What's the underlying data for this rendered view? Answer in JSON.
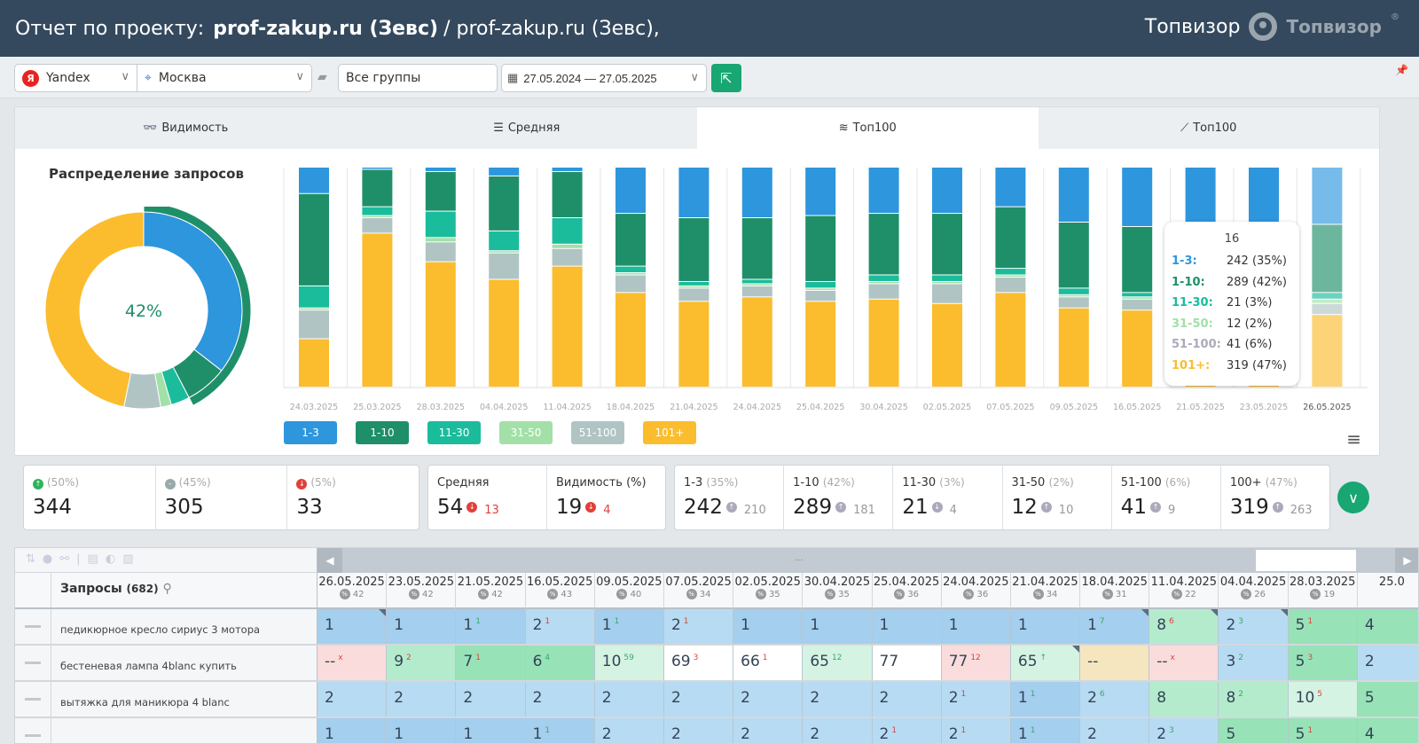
{
  "header": {
    "title_prefix": "Отчет по проекту:",
    "project_bold": "prof-zakup.ru (Зевс)",
    "project_rest": "/ prof-zakup.ru (Зевс),",
    "brand_text": "Топвизор",
    "logo_text": "Топвизор",
    "logo_mark": "®"
  },
  "toolbar": {
    "engine": "Yandex",
    "engine_icon": "Я",
    "region": "Москва",
    "groups": "Все группы",
    "date_range": "27.05.2024 — 27.05.2025"
  },
  "tabs": [
    {
      "label": "Видимость",
      "icon": "glasses-icon"
    },
    {
      "label": "Средняя",
      "icon": "lines-icon"
    },
    {
      "label": "Топ100",
      "icon": "layers-icon",
      "active": true
    },
    {
      "label": "Топ100",
      "icon": "chart-icon"
    }
  ],
  "distribution_title": "Распределение запросов",
  "colors": {
    "1-3": "#2d96dd",
    "1-10": "#1f8f6a",
    "11-30": "#1abc9c",
    "31-50": "#a3e0a8",
    "51-100": "#b0c4c4",
    "101+": "#fbbd2e"
  },
  "chart_data": [
    {
      "type": "pie",
      "title": "Распределение запросов",
      "center_label": "42%",
      "labels": [
        "1-3",
        "4-10",
        "11-30",
        "31-50",
        "51-100",
        "101+"
      ],
      "values": [
        242,
        47,
        21,
        12,
        41,
        319
      ],
      "outer_ring": {
        "label": "1-10",
        "value": 289,
        "total": 682
      }
    },
    {
      "type": "bar",
      "stacked": true,
      "categories": [
        "24.03.2025",
        "25.03.2025",
        "28.03.2025",
        "04.04.2025",
        "11.04.2025",
        "18.04.2025",
        "21.04.2025",
        "24.04.2025",
        "25.04.2025",
        "30.04.2025",
        "02.05.2025",
        "07.05.2025",
        "09.05.2025",
        "16.05.2025",
        "21.05.2025",
        "23.05.2025",
        "26.05.2025"
      ],
      "series": [
        {
          "name": "1-3",
          "values": [
            12,
            1,
            2,
            4,
            2,
            21,
            23,
            23,
            22,
            21,
            21,
            18,
            25,
            27,
            27,
            27,
            26
          ]
        },
        {
          "name": "1-10",
          "values": [
            42,
            17,
            18,
            25,
            21,
            24,
            29,
            28,
            30,
            28,
            28,
            28,
            30,
            30,
            30,
            30,
            31
          ]
        },
        {
          "name": "11-30",
          "values": [
            10,
            4,
            12,
            9,
            12,
            3,
            2,
            2,
            3,
            3,
            3,
            3,
            3,
            2,
            2,
            2,
            3
          ]
        },
        {
          "name": "31-50",
          "values": [
            1,
            1,
            2,
            1,
            2,
            1,
            1,
            1,
            1,
            1,
            1,
            1,
            1,
            1,
            1,
            1,
            2
          ]
        },
        {
          "name": "51-100",
          "values": [
            13,
            7,
            9,
            12,
            8,
            8,
            6,
            5,
            5,
            7,
            9,
            7,
            5,
            5,
            5,
            5,
            5
          ]
        },
        {
          "name": "101+",
          "values": [
            22,
            70,
            57,
            49,
            55,
            43,
            39,
            41,
            39,
            40,
            38,
            43,
            36,
            35,
            35,
            35,
            33
          ]
        }
      ],
      "ylabel": "%",
      "ylim": [
        0,
        100
      ],
      "legend": [
        "1-3",
        "1-10",
        "11-30",
        "31-50",
        "51-100",
        "101+"
      ],
      "legend_placement": "bottom-left",
      "highlighted": "26.05.2025",
      "tooltip": {
        "title": "16",
        "rows": [
          {
            "k": "1-3:",
            "v": "242 (35%)"
          },
          {
            "k": "1-10:",
            "v": "289 (42%)"
          },
          {
            "k": "11-30:",
            "v": "21 (3%)"
          },
          {
            "k": "31-50:",
            "v": "12 (2%)"
          },
          {
            "k": "51-100:",
            "v": "41 (6%)"
          },
          {
            "k": "101+:",
            "v": "319 (47%)"
          }
        ]
      }
    }
  ],
  "summary": [
    {
      "pct": "(50%)",
      "value": "344",
      "icon": "up"
    },
    {
      "pct": "(45%)",
      "value": "305",
      "icon": "same"
    },
    {
      "pct": "(5%)",
      "value": "33",
      "icon": "down"
    }
  ],
  "avg": [
    {
      "label": "Средняя",
      "value": "54",
      "delta": "13"
    },
    {
      "label": "Видимость (%)",
      "value": "19",
      "delta": "4"
    }
  ],
  "ranges": [
    {
      "label": "1-3",
      "pct": "(35%)",
      "value": "242",
      "delta": "210",
      "dir": "up"
    },
    {
      "label": "1-10",
      "pct": "(42%)",
      "value": "289",
      "delta": "181",
      "dir": "up"
    },
    {
      "label": "11-30",
      "pct": "(3%)",
      "value": "21",
      "delta": "4",
      "dir": "down"
    },
    {
      "label": "31-50",
      "pct": "(2%)",
      "value": "12",
      "delta": "10",
      "dir": "up"
    },
    {
      "label": "51-100",
      "pct": "(6%)",
      "value": "41",
      "delta": "9",
      "dir": "up"
    },
    {
      "label": "100+",
      "pct": "(47%)",
      "value": "319",
      "delta": "263",
      "dir": "up"
    }
  ],
  "table": {
    "queries_label": "Запросы",
    "queries_count": "(682)",
    "scroll_dots": "...",
    "columns": [
      {
        "d": "26.05.2025",
        "p": "42"
      },
      {
        "d": "23.05.2025",
        "p": "42"
      },
      {
        "d": "21.05.2025",
        "p": "42"
      },
      {
        "d": "16.05.2025",
        "p": "43"
      },
      {
        "d": "09.05.2025",
        "p": "40"
      },
      {
        "d": "07.05.2025",
        "p": "34"
      },
      {
        "d": "02.05.2025",
        "p": "35"
      },
      {
        "d": "30.04.2025",
        "p": "35"
      },
      {
        "d": "25.04.2025",
        "p": "36"
      },
      {
        "d": "24.04.2025",
        "p": "36"
      },
      {
        "d": "21.04.2025",
        "p": "34"
      },
      {
        "d": "18.04.2025",
        "p": "31"
      },
      {
        "d": "11.04.2025",
        "p": "22"
      },
      {
        "d": "04.04.2025",
        "p": "26"
      },
      {
        "d": "28.03.2025",
        "p": "19"
      },
      {
        "d": "25.0",
        "p": ""
      }
    ],
    "rows": [
      {
        "q": "педикюрное кресло сириус 3 мотора",
        "cells": [
          {
            "v": "1",
            "c": "blue",
            "f": 1
          },
          {
            "v": "1",
            "c": "blue"
          },
          {
            "v": "1",
            "s": "1",
            "u": 1,
            "c": "blue"
          },
          {
            "v": "2",
            "s": "1",
            "c": "lblue"
          },
          {
            "v": "1",
            "s": "1",
            "u": 1,
            "c": "blue"
          },
          {
            "v": "2",
            "s": "1",
            "c": "lblue"
          },
          {
            "v": "1",
            "c": "blue"
          },
          {
            "v": "1",
            "c": "blue"
          },
          {
            "v": "1",
            "c": "blue"
          },
          {
            "v": "1",
            "c": "blue"
          },
          {
            "v": "1",
            "c": "blue"
          },
          {
            "v": "1",
            "s": "7",
            "u": 1,
            "c": "blue",
            "f": 1
          },
          {
            "v": "8",
            "s": "6",
            "c": "lgreen",
            "f": 1
          },
          {
            "v": "2",
            "s": "3",
            "u": 1,
            "c": "lblue",
            "f": 1
          },
          {
            "v": "5",
            "s": "1",
            "c": "green"
          },
          {
            "v": "4",
            "c": "green"
          }
        ]
      },
      {
        "q": "бестеневая лампа 4blanc купить",
        "cells": [
          {
            "v": "--",
            "s": "x",
            "c": "pink"
          },
          {
            "v": "9",
            "s": "2",
            "c": "lgreen"
          },
          {
            "v": "7",
            "s": "1",
            "c": "green"
          },
          {
            "v": "6",
            "s": "4",
            "u": 1,
            "c": "green"
          },
          {
            "v": "10",
            "s": "59",
            "u": 1,
            "c": "pale"
          },
          {
            "v": "69",
            "s": "3",
            "c": "white"
          },
          {
            "v": "66",
            "s": "1",
            "c": "white"
          },
          {
            "v": "65",
            "s": "12",
            "u": 1,
            "c": "pale"
          },
          {
            "v": "77",
            "c": "white"
          },
          {
            "v": "77",
            "s": "12",
            "c": "pink"
          },
          {
            "v": "65",
            "s": "↑",
            "u": 1,
            "c": "pale",
            "f": 1
          },
          {
            "v": "--",
            "c": "tan"
          },
          {
            "v": "--",
            "s": "x",
            "c": "pink"
          },
          {
            "v": "3",
            "s": "2",
            "u": 1,
            "c": "lblue"
          },
          {
            "v": "5",
            "s": "3",
            "c": "green"
          },
          {
            "v": "2",
            "c": "lblue"
          }
        ]
      },
      {
        "q": "вытяжка для маникюра 4 blanc",
        "cells": [
          {
            "v": "2",
            "c": "lblue"
          },
          {
            "v": "2",
            "c": "lblue"
          },
          {
            "v": "2",
            "c": "lblue"
          },
          {
            "v": "2",
            "c": "lblue"
          },
          {
            "v": "2",
            "c": "lblue"
          },
          {
            "v": "2",
            "c": "lblue"
          },
          {
            "v": "2",
            "c": "lblue"
          },
          {
            "v": "2",
            "c": "lblue"
          },
          {
            "v": "2",
            "c": "lblue"
          },
          {
            "v": "2",
            "s": "1",
            "c": "lblue"
          },
          {
            "v": "1",
            "s": "1",
            "u": 1,
            "c": "blue"
          },
          {
            "v": "2",
            "s": "6",
            "u": 1,
            "c": "lblue"
          },
          {
            "v": "8",
            "c": "lgreen"
          },
          {
            "v": "8",
            "s": "2",
            "u": 1,
            "c": "lgreen"
          },
          {
            "v": "10",
            "s": "5",
            "c": "pale"
          },
          {
            "v": "5",
            "c": "green"
          }
        ]
      },
      {
        "q": "",
        "cells": [
          {
            "v": "1",
            "c": "blue"
          },
          {
            "v": "1",
            "c": "blue"
          },
          {
            "v": "1",
            "c": "blue"
          },
          {
            "v": "1",
            "s": "1",
            "u": 1,
            "c": "blue"
          },
          {
            "v": "2",
            "c": "lblue"
          },
          {
            "v": "2",
            "c": "lblue"
          },
          {
            "v": "2",
            "c": "lblue"
          },
          {
            "v": "2",
            "c": "lblue"
          },
          {
            "v": "2",
            "s": "1",
            "c": "lblue"
          },
          {
            "v": "2",
            "s": "1",
            "c": "lblue"
          },
          {
            "v": "1",
            "s": "1",
            "u": 1,
            "c": "blue"
          },
          {
            "v": "2",
            "c": "lblue"
          },
          {
            "v": "2",
            "s": "3",
            "u": 1,
            "c": "lblue"
          },
          {
            "v": "5",
            "c": "green"
          },
          {
            "v": "5",
            "s": "1",
            "c": "green"
          },
          {
            "v": "4",
            "c": "green"
          }
        ]
      }
    ]
  }
}
